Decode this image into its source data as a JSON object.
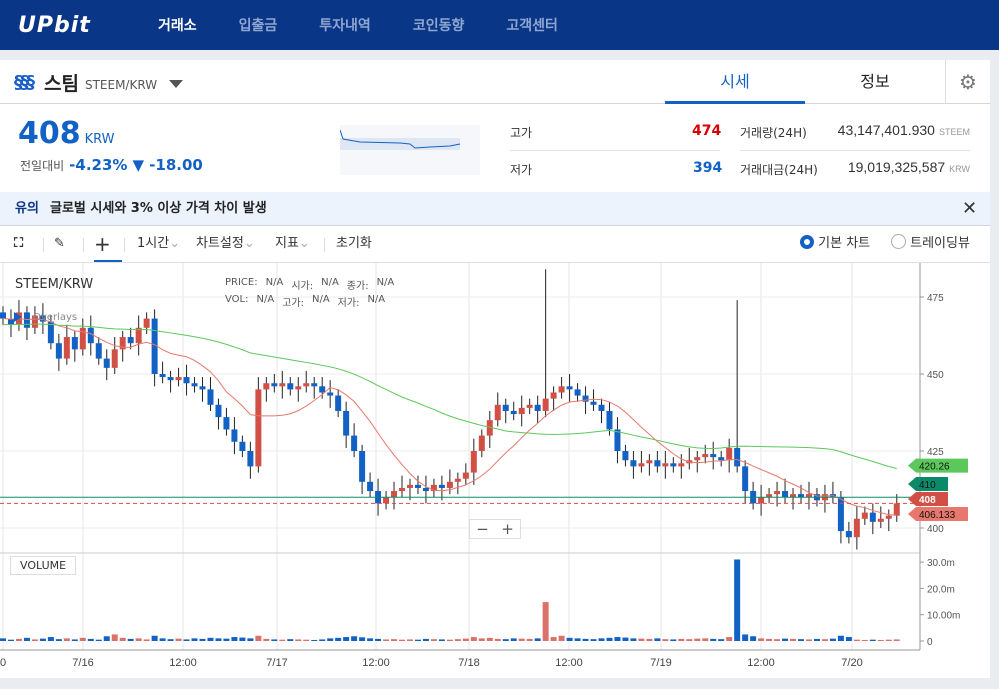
{
  "nav": {
    "logo": "UPbit",
    "items": [
      "거래소",
      "입출금",
      "투자내역",
      "코인동향",
      "고객센터"
    ]
  },
  "coin": {
    "icon": "steem-icon",
    "name": "스팀",
    "pair": "STEEM/KRW"
  },
  "tabs": [
    "시세",
    "정보"
  ],
  "ticker": {
    "price": "408",
    "unit": "KRW",
    "change_label": "전일대비",
    "change_pct": "-4.23%",
    "change_val": "▼ -18.00",
    "high_label": "고가",
    "high": "474",
    "low_label": "저가",
    "low": "394",
    "vol_label": "거래량(24H)",
    "vol": "43,147,401.930",
    "vol_unit": "STEEM",
    "amt_label": "거래대금(24H)",
    "amt": "19,019,325,587",
    "amt_unit": "KRW"
  },
  "notice": {
    "tag": "유의",
    "text": "글로벌 시세와 3% 이상 가격 차이 발생"
  },
  "toolbar": {
    "interval": "1시간",
    "settings": "차트설정",
    "indicators": "지표",
    "reset": "초기화",
    "radio1": "기본 차트",
    "radio2": "트레이딩뷰"
  },
  "colors": {
    "up": "#d24f45",
    "down": "#1261c4",
    "ma_short": "#e8786d",
    "ma_long": "#5cc85c",
    "last_line": "#0b8a6a"
  },
  "chart_data": {
    "type": "candlestick",
    "title": "STEEM/KRW",
    "legend_row1": [
      "PRICE:",
      "N/A",
      "시가:",
      "N/A",
      "종가:",
      "N/A"
    ],
    "legend_row2": [
      "VOL:",
      "N/A",
      "고가:",
      "N/A",
      "저가:",
      "N/A"
    ],
    "overlays_label": "Overlays",
    "volume_label": "VOLUME",
    "y_ticks": [
      400,
      425,
      450,
      475
    ],
    "vol_ticks": [
      "0",
      "10.00m",
      "20.0m",
      "30.0m"
    ],
    "x_ticks": [
      "0",
      "7/16",
      "12:00",
      "7/17",
      "12:00",
      "7/18",
      "12:00",
      "7/19",
      "12:00",
      "7/20"
    ],
    "ylim": [
      390,
      490
    ],
    "closes": [
      468,
      466,
      470,
      465,
      469,
      467,
      460,
      455,
      462,
      458,
      465,
      460,
      455,
      452,
      458,
      462,
      460,
      465,
      468,
      450,
      449,
      448,
      449,
      447,
      446,
      445,
      440,
      436,
      432,
      428,
      425,
      420,
      445,
      447,
      446,
      447,
      445,
      446,
      447,
      446,
      444,
      443,
      438,
      430,
      425,
      415,
      412,
      408,
      410,
      412,
      413,
      414,
      413,
      412,
      414,
      413,
      415,
      416,
      418,
      425,
      430,
      435,
      440,
      438,
      437,
      439,
      440,
      438,
      442,
      444,
      446,
      445,
      443,
      441,
      440,
      438,
      432,
      425,
      422,
      420,
      421,
      422,
      420,
      421,
      420,
      421,
      422,
      423,
      424,
      423,
      422,
      426,
      420,
      412,
      408,
      410,
      411,
      412,
      410,
      411,
      410,
      411,
      409,
      411,
      410,
      399,
      397,
      403,
      405,
      402,
      403,
      404,
      408
    ],
    "spikes": [
      {
        "index": 68,
        "high": 484
      },
      {
        "index": 92,
        "high": 474
      }
    ],
    "volumes": [
      1,
      0.5,
      0.8,
      1.2,
      0.6,
      0.9,
      1.5,
      0.7,
      1,
      0.6,
      1.2,
      0.8,
      0.5,
      1.8,
      2.5,
      1.2,
      0.8,
      1,
      0.6,
      2,
      1,
      0.7,
      0.9,
      0.6,
      1,
      0.8,
      1.2,
      1,
      0.9,
      1.5,
      1.3,
      1,
      2,
      0.8,
      0.6,
      0.5,
      0.7,
      0.6,
      0.5,
      0.4,
      0.6,
      1,
      1.2,
      1.5,
      1.8,
      1.4,
      1,
      0.8,
      0.6,
      0.7,
      0.5,
      0.6,
      0.5,
      0.8,
      0.7,
      0.6,
      0.5,
      0.7,
      0.9,
      1.5,
      1,
      1.2,
      0.8,
      0.7,
      1,
      0.9,
      0.8,
      1,
      14.8,
      1.5,
      2,
      1.2,
      1,
      0.8,
      0.7,
      1,
      1.2,
      1.5,
      1.3,
      1,
      0.9,
      0.8,
      1,
      0.7,
      0.6,
      0.8,
      0.7,
      0.9,
      1,
      0.8,
      0.7,
      1.5,
      31,
      2.5,
      1.8,
      1,
      0.8,
      0.7,
      0.9,
      0.8,
      0.7,
      0.6,
      0.8,
      0.7,
      0.9,
      2,
      1.5,
      0.5,
      0.4,
      0.5,
      0.4,
      0.5,
      0.6
    ],
    "price_labels": [
      {
        "value": "420.26",
        "color": "#5cc85c"
      },
      {
        "value": "410",
        "color": "#0b8a6a"
      },
      {
        "value": "406.133",
        "color": "#e8786d"
      },
      {
        "value": "408",
        "color": "#d24f45"
      }
    ]
  }
}
